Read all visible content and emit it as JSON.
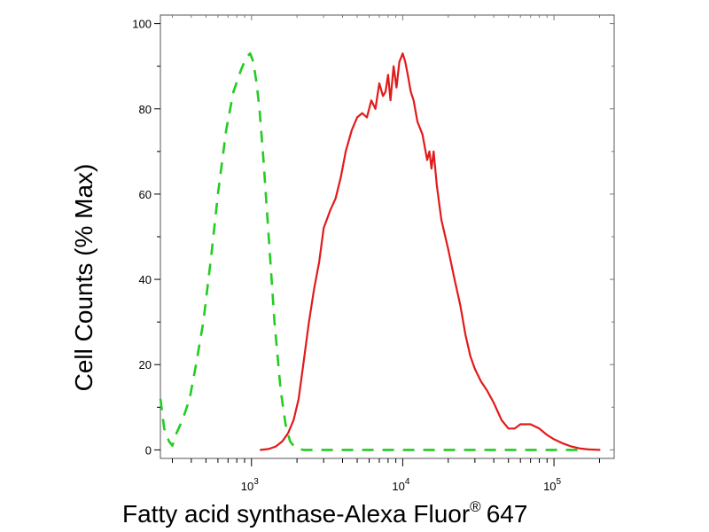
{
  "chart_data": {
    "type": "line",
    "title": "",
    "xlabel": "Fatty acid synthase-Alexa Fluor",
    "xlabel_superscript": "®",
    "xlabel_suffix": "647",
    "ylabel": "Cell Counts (% Max)",
    "xscale": "log",
    "xlim": [
      250,
      250000
    ],
    "ylim": [
      -2,
      102
    ],
    "grid": false,
    "legend": "none",
    "y_ticks": [
      {
        "value": 0,
        "label": "0"
      },
      {
        "value": 20,
        "label": "20"
      },
      {
        "value": 40,
        "label": "40"
      },
      {
        "value": 60,
        "label": "60"
      },
      {
        "value": 80,
        "label": "80"
      },
      {
        "value": 100,
        "label": "100"
      }
    ],
    "x_ticks": [
      {
        "value": 1000,
        "base": "10",
        "exp": "3"
      },
      {
        "value": 10000,
        "base": "10",
        "exp": "4"
      },
      {
        "value": 100000,
        "base": "10",
        "exp": "5"
      }
    ],
    "series": [
      {
        "color": "#22cc22",
        "dash": "dashed",
        "x": [
          250,
          265,
          285,
          300,
          320,
          350,
          390,
          430,
          480,
          540,
          600,
          680,
          760,
          850,
          920,
          980,
          1030,
          1080,
          1130,
          1200,
          1300,
          1420,
          1560,
          1680,
          1800,
          1950,
          2200,
          2600,
          3500,
          6000,
          12000,
          30000,
          70000,
          160000
        ],
        "y": [
          12,
          5,
          2,
          1,
          4,
          7,
          12,
          20,
          30,
          45,
          60,
          75,
          84,
          89,
          92,
          93,
          91,
          86,
          80,
          68,
          50,
          30,
          14,
          6,
          2,
          0.5,
          0,
          0,
          0,
          0,
          0,
          0,
          0,
          0
        ]
      },
      {
        "color": "#e21a1a",
        "dash": "solid",
        "x": [
          1150,
          1300,
          1450,
          1600,
          1750,
          1900,
          2050,
          2200,
          2400,
          2600,
          2800,
          3000,
          3300,
          3600,
          3900,
          4200,
          4600,
          5000,
          5400,
          5800,
          6200,
          6600,
          7000,
          7400,
          7700,
          8000,
          8300,
          8700,
          9100,
          9500,
          10000,
          10400,
          10800,
          11300,
          11800,
          12500,
          13500,
          14500,
          15000,
          15500,
          16000,
          16800,
          18000,
          20000,
          22000,
          24000,
          26000,
          28000,
          30000,
          33000,
          36000,
          40000,
          45000,
          50000,
          55000,
          60000,
          65000,
          70000,
          80000,
          90000,
          100000,
          115000,
          130000,
          150000,
          170000,
          200000
        ],
        "y": [
          0,
          0.2,
          0.8,
          2,
          4,
          7,
          12,
          20,
          30,
          38,
          44,
          52,
          56,
          59,
          64,
          70,
          75,
          78,
          79,
          78,
          82,
          80,
          86,
          83,
          84,
          88,
          82,
          90,
          85,
          91,
          93,
          91,
          88,
          84,
          82,
          77,
          74,
          68,
          70,
          66,
          70,
          62,
          54,
          47,
          40,
          34,
          27,
          22,
          19,
          16,
          14,
          11,
          7,
          5,
          5,
          6,
          6,
          6,
          5,
          3.5,
          2.5,
          1.5,
          0.8,
          0.3,
          0.1,
          0
        ]
      }
    ]
  }
}
